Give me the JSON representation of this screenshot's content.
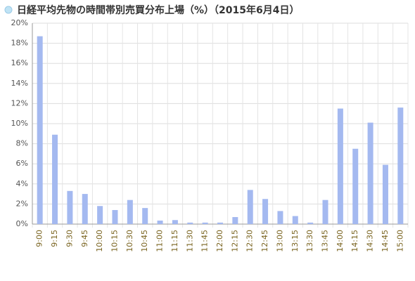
{
  "chart_data": {
    "type": "bar",
    "title": "日経平均先物の時間帯別売買分布上場（%）（2015年6月4日）",
    "categories": [
      "9:00",
      "9:15",
      "9:30",
      "9:45",
      "10:00",
      "10:15",
      "10:30",
      "10:45",
      "11:00",
      "11:15",
      "11:30",
      "11:45",
      "12:00",
      "12:15",
      "12:30",
      "12:45",
      "13:00",
      "13:15",
      "13:30",
      "13:45",
      "14:00",
      "14:15",
      "14:30",
      "14:45",
      "15:00"
    ],
    "values": [
      18.7,
      8.9,
      3.3,
      3.0,
      1.8,
      1.4,
      2.4,
      1.6,
      0.35,
      0.4,
      0.15,
      0.15,
      0.15,
      0.7,
      3.4,
      2.5,
      1.3,
      0.8,
      0.15,
      2.4,
      11.5,
      7.5,
      10.1,
      5.9,
      11.6
    ],
    "color": "#a4b9f0",
    "ylim": [
      0,
      20
    ],
    "yticks": [
      {
        "value": 0,
        "label": "0%"
      },
      {
        "value": 2,
        "label": "2%"
      },
      {
        "value": 4,
        "label": "4%"
      },
      {
        "value": 6,
        "label": "6%"
      },
      {
        "value": 8,
        "label": "8%"
      },
      {
        "value": 10,
        "label": "10%"
      },
      {
        "value": 12,
        "label": "12%"
      },
      {
        "value": 14,
        "label": "14%"
      },
      {
        "value": 16,
        "label": "16%"
      },
      {
        "value": 18,
        "label": "18%"
      },
      {
        "value": 20,
        "label": "20%"
      }
    ],
    "grid": true
  }
}
